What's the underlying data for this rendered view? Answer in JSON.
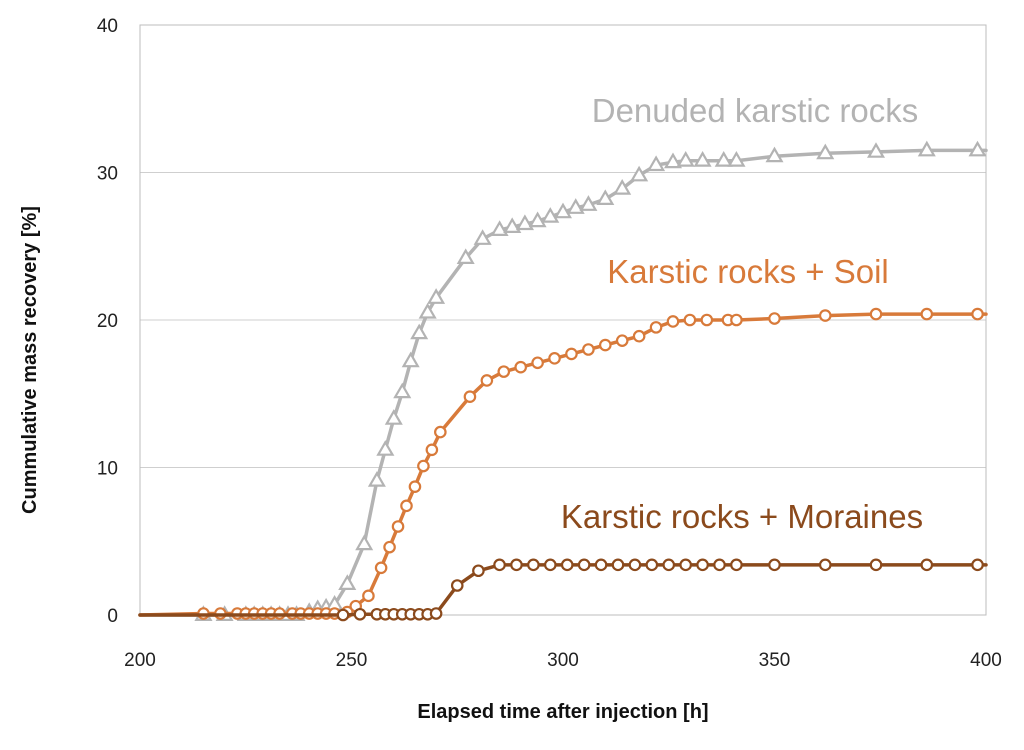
{
  "chart_data": {
    "type": "line",
    "title": "",
    "xlabel": "Elapsed time after injection [h]",
    "ylabel": "Cummulative mass recovery [%]",
    "xlim": [
      200,
      400
    ],
    "ylim": [
      0,
      40
    ],
    "xticks": [
      200,
      250,
      300,
      350,
      400
    ],
    "yticks": [
      0,
      10,
      20,
      30,
      40
    ],
    "grid": "horizontal",
    "legend": "labels placed beside each curve",
    "series": [
      {
        "name": "Denuded karstic rocks",
        "color": "#b3b3b3",
        "marker": "triangle",
        "x": [
          200,
          215,
          220,
          225,
          227,
          229,
          231,
          233,
          235,
          237,
          240,
          242,
          244,
          246,
          249,
          253,
          256,
          258,
          260,
          262,
          264,
          266,
          268,
          270,
          277,
          281,
          285,
          288,
          291,
          294,
          297,
          300,
          303,
          306,
          310,
          314,
          318,
          322,
          326,
          329,
          333,
          338,
          341,
          350,
          362,
          374,
          386,
          398,
          400
        ],
        "y": [
          0,
          0,
          0,
          0,
          0,
          0,
          0,
          0,
          0,
          0,
          0.2,
          0.4,
          0.5,
          0.7,
          2.1,
          4.8,
          9.1,
          11.2,
          13.3,
          15.1,
          17.2,
          19.1,
          20.5,
          21.5,
          24.2,
          25.5,
          26.1,
          26.3,
          26.5,
          26.7,
          27.0,
          27.3,
          27.6,
          27.8,
          28.2,
          28.9,
          29.8,
          30.5,
          30.7,
          30.8,
          30.8,
          30.8,
          30.8,
          31.1,
          31.3,
          31.4,
          31.5,
          31.5,
          31.5
        ]
      },
      {
        "name": "Karstic rocks + Soil",
        "color": "#d87a3a",
        "marker": "circle",
        "x": [
          200,
          215,
          219,
          223,
          225,
          227,
          229,
          231,
          233,
          236,
          238,
          240,
          242,
          244,
          246,
          249,
          251,
          254,
          257,
          259,
          261,
          263,
          265,
          267,
          269,
          271,
          278,
          282,
          286,
          290,
          294,
          298,
          302,
          306,
          310,
          314,
          318,
          322,
          326,
          330,
          334,
          339,
          341,
          350,
          362,
          374,
          386,
          398,
          400
        ],
        "y": [
          0,
          0.1,
          0.1,
          0.1,
          0.1,
          0.1,
          0.1,
          0.1,
          0.1,
          0.1,
          0.1,
          0.1,
          0.1,
          0.1,
          0.1,
          0.2,
          0.6,
          1.3,
          3.2,
          4.6,
          6.0,
          7.4,
          8.7,
          10.1,
          11.2,
          12.4,
          14.8,
          15.9,
          16.5,
          16.8,
          17.1,
          17.4,
          17.7,
          18.0,
          18.3,
          18.6,
          18.9,
          19.5,
          19.9,
          20.0,
          20.0,
          20.0,
          20.0,
          20.1,
          20.3,
          20.4,
          20.4,
          20.4,
          20.4
        ]
      },
      {
        "name": "Karstic rocks + Moraines",
        "color": "#8b4a1c",
        "marker": "circle",
        "x": [
          200,
          248,
          252,
          256,
          258,
          260,
          262,
          264,
          266,
          268,
          270,
          275,
          280,
          285,
          289,
          293,
          297,
          301,
          305,
          309,
          313,
          317,
          321,
          325,
          329,
          333,
          337,
          341,
          350,
          362,
          374,
          386,
          398,
          400
        ],
        "y": [
          0,
          0,
          0.05,
          0.05,
          0.05,
          0.05,
          0.05,
          0.05,
          0.05,
          0.05,
          0.1,
          2.0,
          3.0,
          3.4,
          3.4,
          3.4,
          3.4,
          3.4,
          3.4,
          3.4,
          3.4,
          3.4,
          3.4,
          3.4,
          3.4,
          3.4,
          3.4,
          3.4,
          3.4,
          3.4,
          3.4,
          3.4,
          3.4,
          3.4
        ]
      }
    ]
  }
}
